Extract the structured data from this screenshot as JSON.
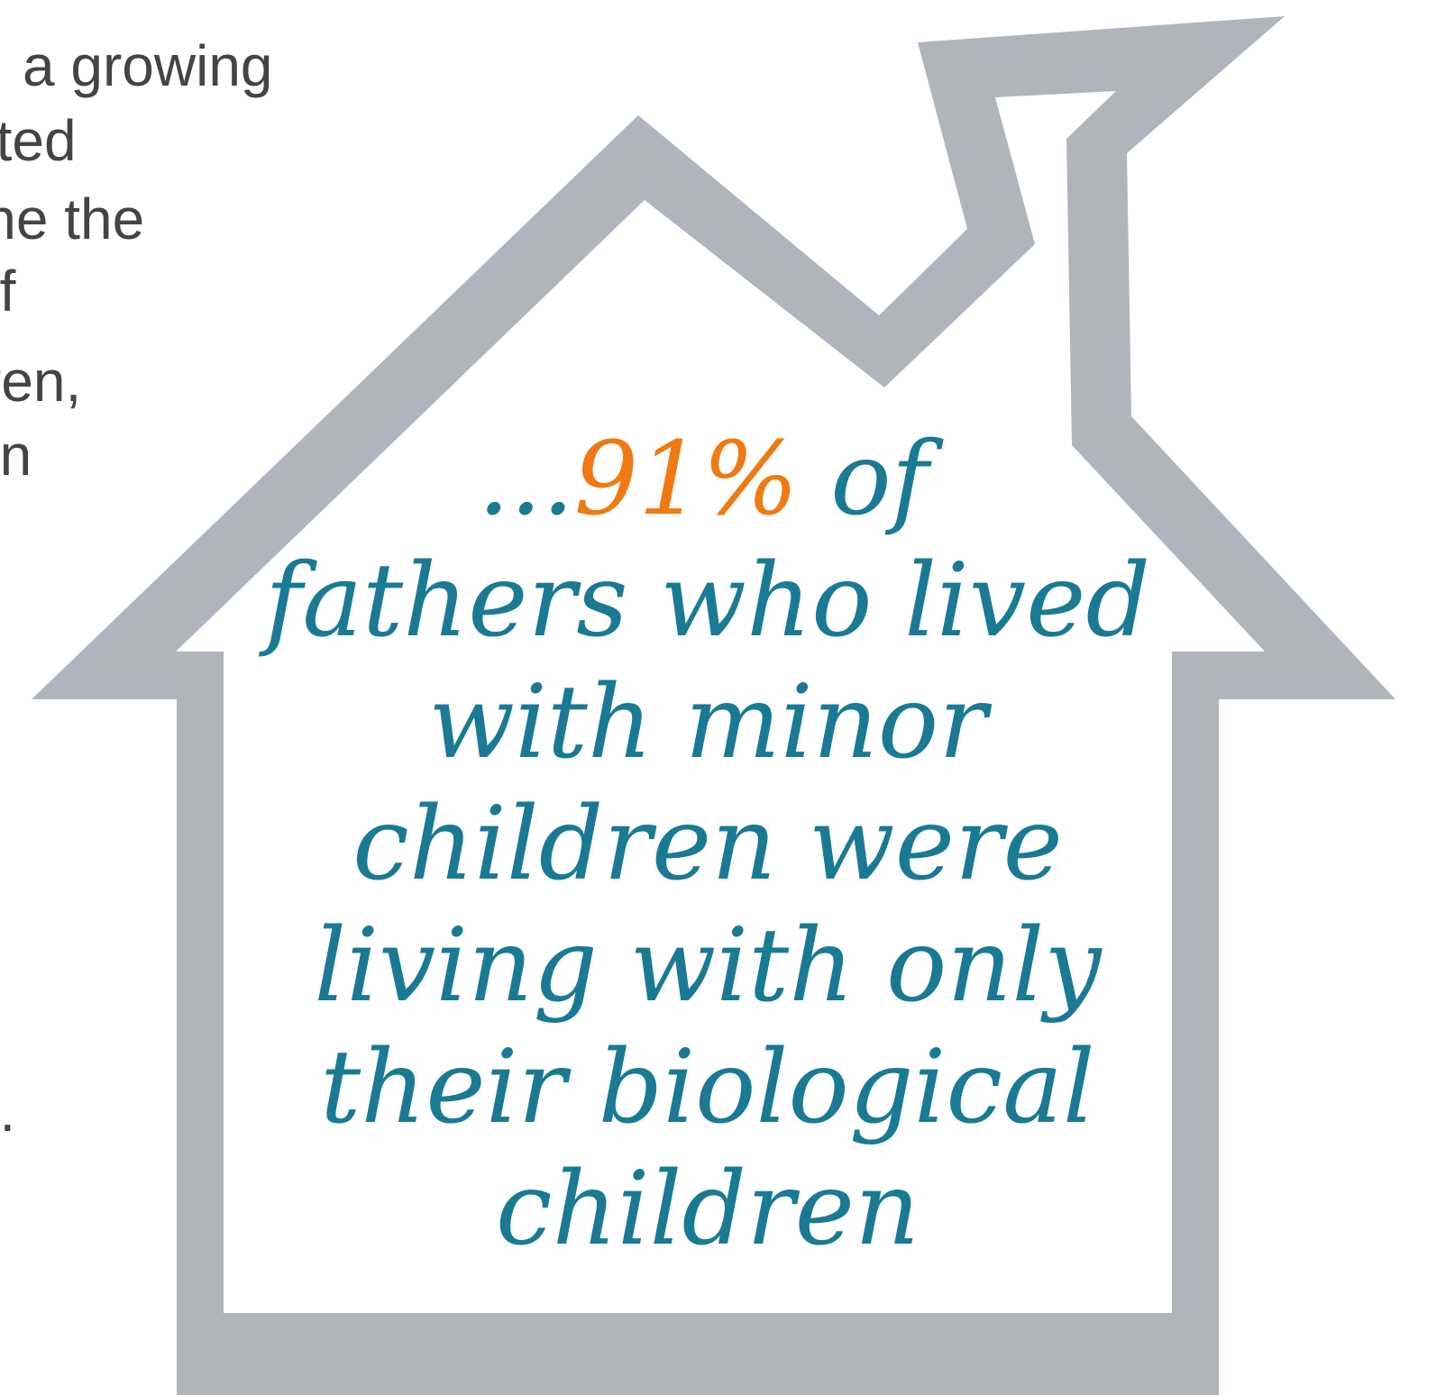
{
  "left_text": {
    "lines": [
      "a growing",
      "ated",
      "ine the",
      "of",
      "ren,",
      "en",
      ")."
    ]
  },
  "house": {
    "lead": "...",
    "highlight": "91%",
    "lead_tail": " of",
    "lines": [
      "fathers who lived",
      "with minor",
      "children were",
      "living with only",
      "their biological",
      "children"
    ]
  }
}
